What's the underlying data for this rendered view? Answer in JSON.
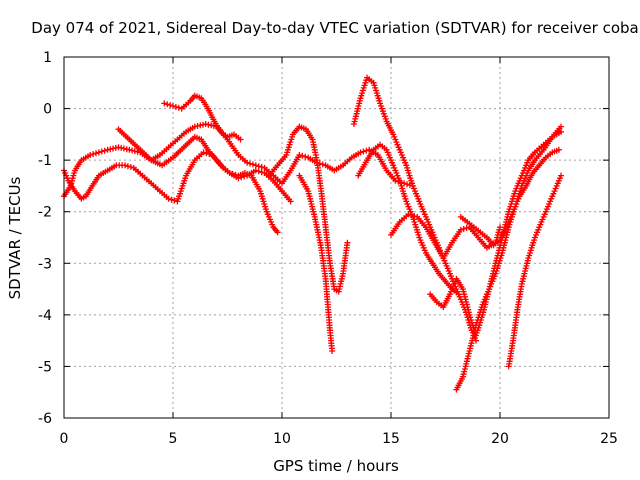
{
  "chart_data": {
    "type": "scatter",
    "title": "Day 074 of 2021, Sidereal Day-to-day VTEC variation (SDTVAR) for receiver coba",
    "xlabel": "GPS time / hours",
    "ylabel": "SDTVAR / TECUs",
    "xlim": [
      0,
      25
    ],
    "ylim": [
      -6,
      1
    ],
    "xticks": [
      "0",
      "5",
      "10",
      "15",
      "20",
      "25"
    ],
    "yticks": [
      "-6",
      "-5",
      "-4",
      "-3",
      "-2",
      "-1",
      "0",
      "1"
    ],
    "grid": true,
    "marker": "plus",
    "color": "#ff0000",
    "series": [
      {
        "x": [
          0.0,
          0.3,
          0.5,
          0.8,
          1.2,
          1.6,
          2.0,
          2.5,
          3.0,
          3.5,
          4.0,
          4.4,
          4.8,
          5.2,
          5.6,
          6.0,
          6.5,
          7.0,
          7.5,
          8.0,
          8.4,
          8.8,
          9.2,
          9.6,
          10.0,
          10.4,
          10.8,
          11.2,
          11.6,
          12.0,
          12.4,
          12.8,
          13.2,
          13.6,
          14.0,
          14.4,
          14.8,
          15.2,
          15.6,
          16.0
        ],
        "y": [
          -1.7,
          -1.5,
          -1.2,
          -1.0,
          -0.9,
          -0.85,
          -0.8,
          -0.75,
          -0.8,
          -0.85,
          -1.0,
          -0.9,
          -0.75,
          -0.6,
          -0.45,
          -0.35,
          -0.3,
          -0.35,
          -0.6,
          -0.9,
          -1.05,
          -1.1,
          -1.15,
          -1.3,
          -1.45,
          -1.2,
          -0.9,
          -0.95,
          -1.05,
          -1.1,
          -1.2,
          -1.1,
          -0.95,
          -0.85,
          -0.8,
          -0.9,
          -1.2,
          -1.4,
          -1.45,
          -1.5
        ]
      },
      {
        "x": [
          0.0,
          0.2,
          0.5,
          0.8,
          1.0,
          1.3,
          1.6,
          2.0,
          2.4,
          2.8,
          3.2,
          3.6,
          4.0,
          4.4,
          4.8,
          5.2,
          5.6,
          6.0,
          6.4,
          6.8,
          7.2,
          7.6,
          8.0,
          8.4,
          8.8,
          9.2,
          9.6,
          10.0,
          10.4
        ],
        "y": [
          -1.2,
          -1.4,
          -1.6,
          -1.75,
          -1.7,
          -1.5,
          -1.3,
          -1.2,
          -1.1,
          -1.1,
          -1.15,
          -1.3,
          -1.45,
          -1.6,
          -1.75,
          -1.8,
          -1.3,
          -1.0,
          -0.85,
          -0.9,
          -1.1,
          -1.25,
          -1.35,
          -1.3,
          -1.2,
          -1.25,
          -1.4,
          -1.6,
          -1.8
        ]
      },
      {
        "x": [
          2.5,
          3.0,
          3.5,
          4.0,
          4.5,
          5.0,
          5.5,
          6.0,
          6.3,
          6.6,
          7.0,
          7.3,
          7.6,
          8.0,
          8.3,
          8.6,
          9.0,
          9.3,
          9.6,
          9.8
        ],
        "y": [
          -0.4,
          -0.6,
          -0.8,
          -1.0,
          -1.1,
          -0.95,
          -0.75,
          -0.55,
          -0.6,
          -0.8,
          -1.0,
          -1.15,
          -1.25,
          -1.3,
          -1.25,
          -1.3,
          -1.6,
          -2.0,
          -2.3,
          -2.4
        ]
      },
      {
        "x": [
          4.6,
          5.0,
          5.4,
          5.8,
          6.0,
          6.3,
          6.6,
          6.9,
          7.2,
          7.5,
          7.8,
          8.1
        ],
        "y": [
          0.1,
          0.05,
          0.0,
          0.15,
          0.25,
          0.2,
          0.0,
          -0.25,
          -0.45,
          -0.55,
          -0.5,
          -0.6
        ]
      },
      {
        "x": [
          9.4,
          9.8,
          10.2,
          10.5,
          10.8,
          11.1,
          11.4,
          11.6,
          11.8,
          12.0,
          12.2,
          12.4,
          12.6,
          12.8,
          13.0
        ],
        "y": [
          -1.3,
          -1.1,
          -0.9,
          -0.5,
          -0.35,
          -0.4,
          -0.6,
          -1.0,
          -1.6,
          -2.3,
          -3.0,
          -3.5,
          -3.55,
          -3.2,
          -2.6
        ]
      },
      {
        "x": [
          10.8,
          11.2,
          11.5,
          11.8,
          12.0,
          12.1,
          12.2,
          12.3
        ],
        "y": [
          -1.3,
          -1.6,
          -2.1,
          -2.7,
          -3.3,
          -3.8,
          -4.3,
          -4.7
        ]
      },
      {
        "x": [
          13.3,
          13.6,
          13.9,
          14.2,
          14.5,
          14.8,
          15.1,
          15.4,
          15.7,
          16.0,
          16.3,
          16.6,
          16.9,
          17.2,
          17.5,
          17.8,
          18.1,
          18.4,
          18.7,
          18.9
        ],
        "y": [
          -0.3,
          0.2,
          0.6,
          0.5,
          0.1,
          -0.25,
          -0.5,
          -0.8,
          -1.1,
          -1.5,
          -1.8,
          -2.1,
          -2.4,
          -2.7,
          -3.0,
          -3.3,
          -3.6,
          -3.9,
          -4.3,
          -4.5
        ]
      },
      {
        "x": [
          13.5,
          13.9,
          14.2,
          14.5,
          14.8,
          15.1,
          15.4,
          15.7,
          16.0,
          16.3,
          16.6,
          16.9,
          17.2,
          17.5,
          17.8,
          18.1
        ],
        "y": [
          -1.3,
          -1.0,
          -0.8,
          -0.7,
          -0.8,
          -1.1,
          -1.4,
          -1.8,
          -2.1,
          -2.5,
          -2.8,
          -3.0,
          -3.2,
          -3.35,
          -3.5,
          -3.6
        ]
      },
      {
        "x": [
          15.0,
          15.4,
          15.8,
          16.2,
          16.6,
          17.0,
          17.4,
          17.8,
          18.2,
          18.6,
          19.0,
          19.4,
          19.8,
          20.0
        ],
        "y": [
          -2.45,
          -2.2,
          -2.05,
          -2.1,
          -2.3,
          -2.6,
          -2.9,
          -2.6,
          -2.35,
          -2.3,
          -2.5,
          -2.7,
          -2.6,
          -2.3
        ]
      },
      {
        "x": [
          16.8,
          17.1,
          17.4,
          17.7,
          18.0,
          18.3,
          18.6,
          18.9,
          19.2,
          19.5,
          19.8,
          20.1,
          20.4,
          20.7,
          21.0,
          21.3,
          21.6,
          22.0,
          22.4,
          22.8
        ],
        "y": [
          -3.6,
          -3.75,
          -3.85,
          -3.6,
          -3.3,
          -3.5,
          -4.0,
          -4.4,
          -4.0,
          -3.5,
          -3.0,
          -2.5,
          -2.0,
          -1.6,
          -1.3,
          -1.0,
          -0.85,
          -0.7,
          -0.55,
          -0.45
        ]
      },
      {
        "x": [
          18.0,
          18.3,
          18.6,
          18.9,
          19.2,
          19.5,
          19.8,
          20.1,
          20.4,
          20.7,
          21.0,
          21.3,
          21.6,
          22.0,
          22.4,
          22.8
        ],
        "y": [
          -5.45,
          -5.2,
          -4.7,
          -4.2,
          -3.8,
          -3.5,
          -3.2,
          -2.8,
          -2.3,
          -1.9,
          -1.5,
          -1.2,
          -1.0,
          -0.8,
          -0.55,
          -0.35
        ]
      },
      {
        "x": [
          18.2,
          18.5,
          18.8,
          19.1,
          19.4,
          19.7,
          20.0,
          20.3,
          20.6,
          20.9,
          21.2,
          21.5,
          21.8,
          22.1,
          22.4,
          22.7
        ],
        "y": [
          -2.1,
          -2.2,
          -2.3,
          -2.4,
          -2.5,
          -2.65,
          -2.55,
          -2.3,
          -2.0,
          -1.7,
          -1.5,
          -1.25,
          -1.1,
          -0.95,
          -0.85,
          -0.8
        ]
      },
      {
        "x": [
          20.4,
          20.6,
          20.8,
          21.0,
          21.3,
          21.6,
          21.9,
          22.2,
          22.5,
          22.8
        ],
        "y": [
          -5.0,
          -4.5,
          -3.9,
          -3.4,
          -2.9,
          -2.5,
          -2.2,
          -1.9,
          -1.6,
          -1.3
        ]
      }
    ]
  }
}
